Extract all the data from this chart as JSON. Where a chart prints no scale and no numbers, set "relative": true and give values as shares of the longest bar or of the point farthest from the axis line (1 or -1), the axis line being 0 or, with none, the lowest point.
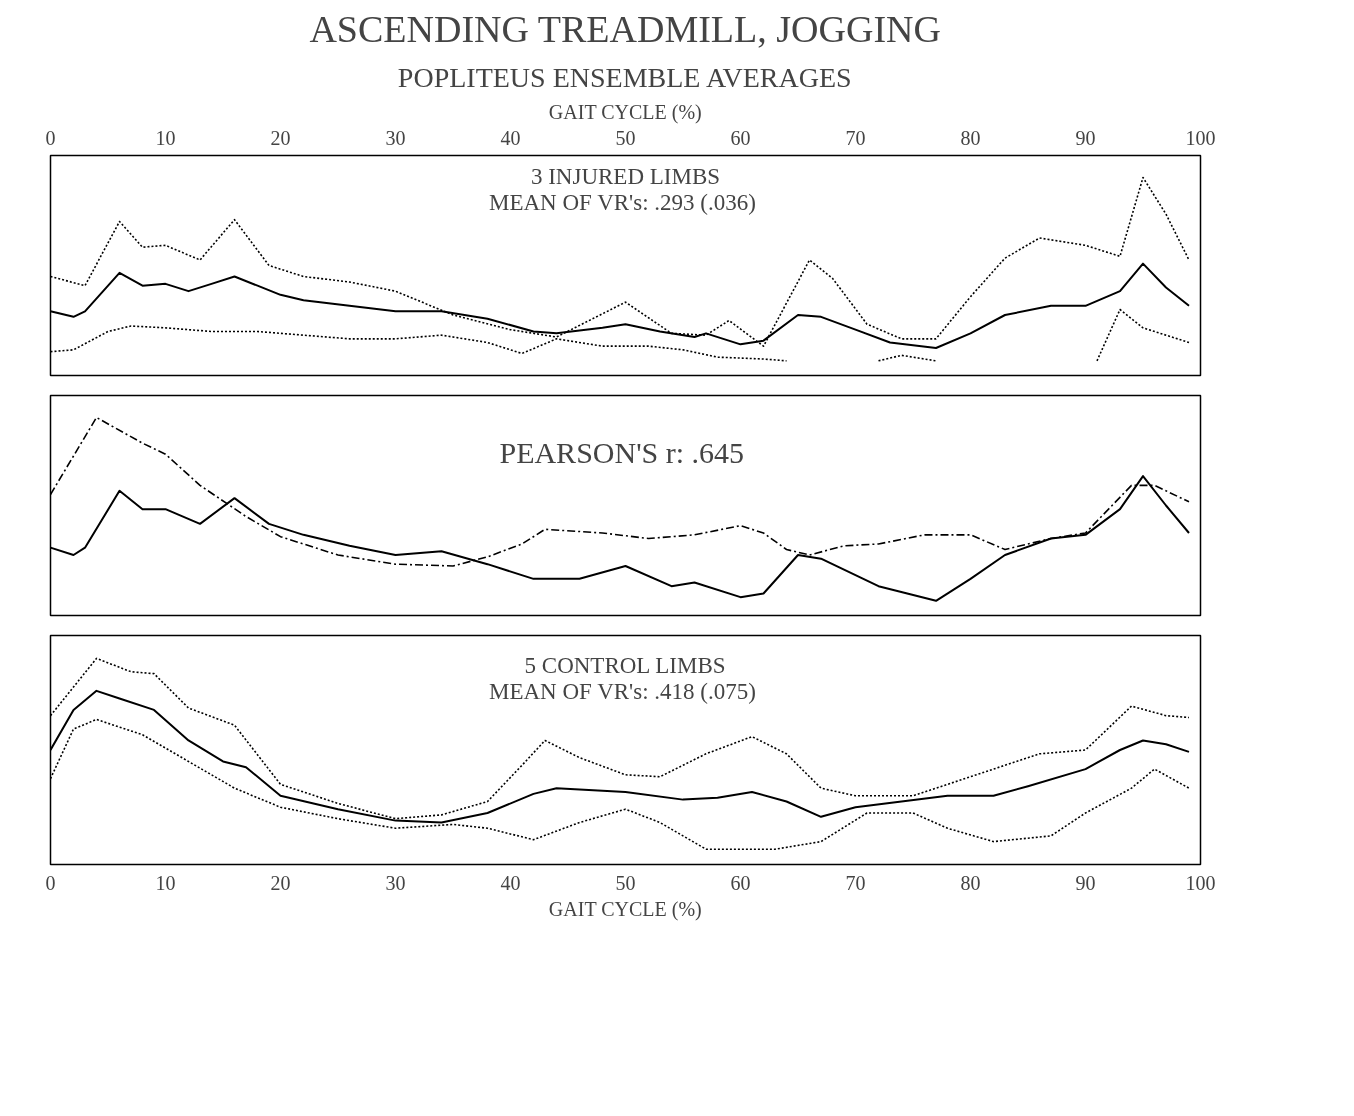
{
  "chart_data": [
    {
      "type": "line",
      "title": "ASCENDING TREADMILL, JOGGING",
      "subtitle": "POPLITEUS ENSEMBLE AVERAGES",
      "x2label": "GAIT CYCLE (%)",
      "x2lim": [
        0,
        100
      ],
      "xlim": [
        0,
        100
      ],
      "x2ticks": [
        0,
        10,
        20,
        30,
        40,
        50,
        60,
        70,
        80,
        90,
        100
      ],
      "relative": true,
      "annotations": [
        "3 INJURED LIMBS",
        "MEAN OF VR's:  .293 (.036)"
      ],
      "series": [
        {
          "color": "#000000",
          "line_style": "solid",
          "x": [
            0,
            2,
            3,
            6,
            8,
            10,
            12,
            14,
            16,
            18,
            20,
            22,
            26,
            30,
            34,
            38,
            42,
            44,
            48,
            50,
            53,
            56,
            57,
            60,
            62,
            65,
            67,
            70,
            73,
            77,
            80,
            83,
            87,
            90,
            93,
            95,
            97,
            99
          ],
          "values": [
            0.27,
            0.24,
            0.27,
            0.48,
            0.41,
            0.42,
            0.38,
            0.42,
            0.46,
            0.41,
            0.36,
            0.33,
            0.3,
            0.27,
            0.27,
            0.23,
            0.16,
            0.15,
            0.18,
            0.2,
            0.16,
            0.13,
            0.15,
            0.09,
            0.11,
            0.25,
            0.24,
            0.17,
            0.1,
            0.07,
            0.15,
            0.25,
            0.3,
            0.3,
            0.38,
            0.53,
            0.4,
            0.3
          ]
        },
        {
          "color": "#000000",
          "line_style": "dotted",
          "x": [
            0,
            3,
            6,
            8,
            10,
            13,
            16,
            19,
            22,
            26,
            30,
            35,
            40,
            44,
            50,
            54,
            57,
            59,
            62,
            66,
            68,
            71,
            74,
            77,
            80,
            83,
            86,
            90,
            93,
            95,
            97,
            99
          ],
          "values": [
            0.46,
            0.41,
            0.76,
            0.62,
            0.63,
            0.55,
            0.77,
            0.52,
            0.46,
            0.43,
            0.38,
            0.25,
            0.17,
            0.13,
            0.32,
            0.15,
            0.14,
            0.22,
            0.08,
            0.55,
            0.45,
            0.2,
            0.12,
            0.12,
            0.35,
            0.56,
            0.67,
            0.63,
            0.57,
            1.0,
            0.8,
            0.55
          ]
        },
        {
          "color": "#000000",
          "line_style": "dotted",
          "x": [
            0,
            2,
            5,
            7,
            10,
            14,
            18,
            22,
            26,
            30,
            34,
            38,
            41,
            44,
            48,
            52,
            55,
            58,
            62,
            64,
            68,
            72,
            74,
            77,
            84,
            91,
            93,
            95,
            99
          ],
          "values": [
            0.05,
            0.06,
            0.16,
            0.19,
            0.18,
            0.16,
            0.16,
            0.14,
            0.12,
            0.12,
            0.14,
            0.1,
            0.04,
            0.12,
            0.08,
            0.08,
            0.06,
            0.02,
            0.01,
            0.0,
            null,
            0.0,
            0.03,
            0.0,
            null,
            0.0,
            0.28,
            0.18,
            0.1
          ]
        }
      ]
    },
    {
      "type": "line",
      "xlim": [
        0,
        100
      ],
      "relative": true,
      "annotations": [
        "PEARSON'S r:  .645"
      ],
      "series": [
        {
          "color": "#000000",
          "line_style": "solid",
          "x": [
            0,
            2,
            3,
            6,
            8,
            10,
            13,
            16,
            19,
            22,
            26,
            30,
            34,
            38,
            42,
            46,
            50,
            54,
            56,
            60,
            62,
            65,
            67,
            72,
            77,
            80,
            83,
            87,
            90,
            93,
            95,
            97,
            99
          ],
          "values": [
            0.29,
            0.25,
            0.29,
            0.6,
            0.5,
            0.5,
            0.42,
            0.56,
            0.42,
            0.36,
            0.3,
            0.25,
            0.27,
            0.2,
            0.12,
            0.12,
            0.19,
            0.08,
            0.1,
            0.02,
            0.04,
            0.25,
            0.23,
            0.08,
            0.0,
            0.12,
            0.25,
            0.34,
            0.36,
            0.5,
            0.68,
            0.52,
            0.37
          ]
        },
        {
          "color": "#000000",
          "line_style": "dashed",
          "x": [
            0,
            2,
            4,
            8,
            10,
            13,
            17,
            20,
            25,
            30,
            35,
            38,
            41,
            43,
            48,
            52,
            56,
            60,
            62,
            64,
            66,
            69,
            72,
            76,
            80,
            83,
            87,
            90,
            94,
            96,
            99
          ],
          "values": [
            0.58,
            0.79,
            1.0,
            0.86,
            0.8,
            0.63,
            0.46,
            0.35,
            0.25,
            0.2,
            0.19,
            0.24,
            0.31,
            0.39,
            0.37,
            0.34,
            0.36,
            0.41,
            0.37,
            0.28,
            0.25,
            0.3,
            0.31,
            0.36,
            0.36,
            0.28,
            0.34,
            0.37,
            0.63,
            0.63,
            0.54
          ]
        }
      ]
    },
    {
      "type": "line",
      "xlim": [
        0,
        100
      ],
      "xticks": [
        0,
        10,
        20,
        30,
        40,
        50,
        60,
        70,
        80,
        90,
        100
      ],
      "xlabel": "GAIT CYCLE (%)",
      "relative": true,
      "annotations": [
        "5 CONTROL LIMBS",
        "MEAN OF VR's:  .418 (.075)"
      ],
      "series": [
        {
          "color": "#000000",
          "line_style": "solid",
          "x": [
            0,
            2,
            4,
            6,
            9,
            12,
            15,
            17,
            20,
            25,
            30,
            34,
            38,
            42,
            44,
            50,
            55,
            58,
            61,
            64,
            67,
            70,
            74,
            78,
            82,
            85,
            90,
            93,
            95,
            97,
            99
          ],
          "values": [
            0.52,
            0.73,
            0.83,
            0.79,
            0.73,
            0.57,
            0.46,
            0.43,
            0.28,
            0.21,
            0.15,
            0.14,
            0.19,
            0.29,
            0.32,
            0.3,
            0.26,
            0.27,
            0.3,
            0.25,
            0.17,
            0.22,
            0.25,
            0.28,
            0.28,
            0.33,
            0.42,
            0.52,
            0.57,
            0.55,
            0.51
          ]
        },
        {
          "color": "#000000",
          "line_style": "dotted",
          "x": [
            0,
            4,
            7,
            9,
            12,
            16,
            20,
            25,
            30,
            34,
            38,
            41,
            43,
            46,
            50,
            53,
            57,
            61,
            64,
            67,
            70,
            75,
            78,
            82,
            86,
            90,
            94,
            97,
            99
          ],
          "values": [
            0.7,
            1.0,
            0.93,
            0.92,
            0.74,
            0.65,
            0.34,
            0.24,
            0.16,
            0.18,
            0.25,
            0.44,
            0.57,
            0.48,
            0.39,
            0.38,
            0.5,
            0.59,
            0.5,
            0.32,
            0.28,
            0.28,
            0.34,
            0.42,
            0.5,
            0.52,
            0.75,
            0.7,
            0.69
          ]
        },
        {
          "color": "#000000",
          "line_style": "dotted",
          "x": [
            0,
            2,
            4,
            8,
            12,
            16,
            20,
            25,
            30,
            35,
            38,
            42,
            46,
            50,
            53,
            57,
            63,
            67,
            71,
            75,
            78,
            82,
            87,
            90,
            94,
            96,
            99
          ],
          "values": [
            0.37,
            0.63,
            0.68,
            0.6,
            0.46,
            0.32,
            0.22,
            0.16,
            0.11,
            0.13,
            0.11,
            0.05,
            0.14,
            0.21,
            0.14,
            0.0,
            0.0,
            0.04,
            0.19,
            0.19,
            0.11,
            0.04,
            0.07,
            0.19,
            0.32,
            0.42,
            0.32
          ]
        }
      ]
    }
  ]
}
